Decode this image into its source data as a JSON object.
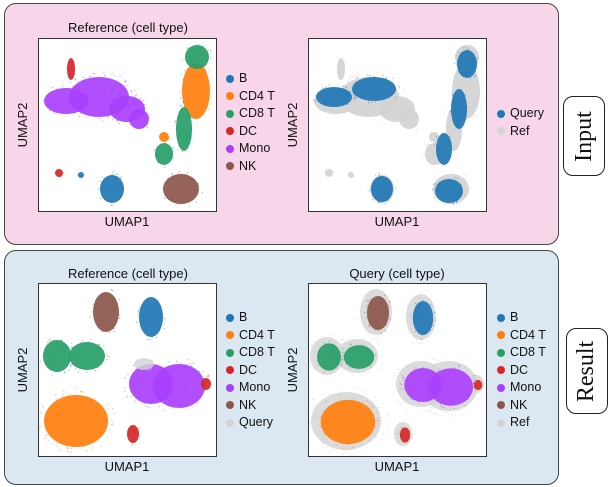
{
  "colors": {
    "B": "#1f77b4",
    "CD4 T": "#ff7f0e",
    "CD8 T": "#279e68",
    "DC": "#d62728",
    "Mono": "#aa40fc",
    "NK": "#8c564b",
    "Query": "#d3d3d3",
    "Ref": "#d3d3d3",
    "QueryBlue": "#1f77b4",
    "input_bg": "#f7d6ea",
    "result_bg": "#dbe8f2"
  },
  "input": {
    "side_label": "Input",
    "left": {
      "title": "Reference (cell type)",
      "xlabel": "UMAP1",
      "ylabel": "UMAP2",
      "legend": [
        "B",
        "CD4 T",
        "CD8 T",
        "DC",
        "Mono",
        "NK"
      ]
    },
    "right": {
      "title": "",
      "xlabel": "UMAP1",
      "ylabel": "UMAP2",
      "legend": [
        "Query",
        "Ref"
      ]
    }
  },
  "result": {
    "side_label": "Result",
    "left": {
      "title": "Reference (cell type)",
      "xlabel": "UMAP1",
      "ylabel": "UMAP2",
      "legend": [
        "B",
        "CD4 T",
        "CD8 T",
        "DC",
        "Mono",
        "NK",
        "Query"
      ]
    },
    "right": {
      "title": "Query (cell type)",
      "xlabel": "UMAP1",
      "ylabel": "UMAP2",
      "legend": [
        "B",
        "CD4 T",
        "CD8 T",
        "DC",
        "Mono",
        "NK",
        "Ref"
      ]
    }
  }
}
